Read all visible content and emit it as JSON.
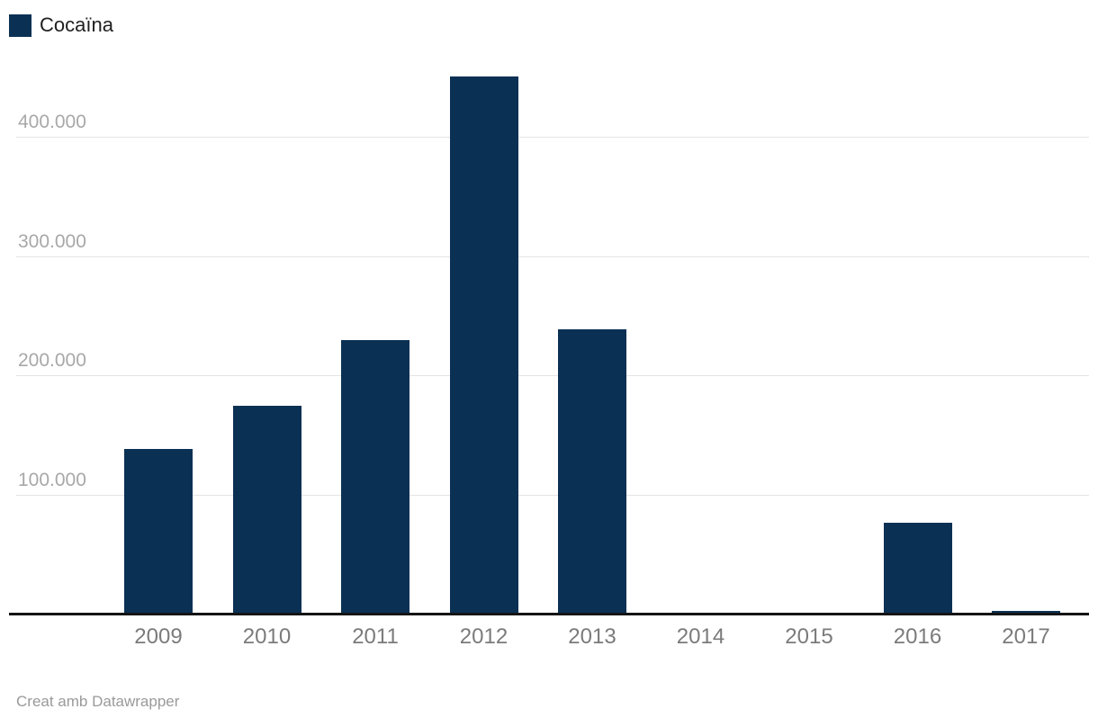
{
  "legend": {
    "items": [
      {
        "label": "Cocaïna",
        "color": "#0a3054"
      }
    ]
  },
  "footer": {
    "attribution": "Creat amb Datawrapper"
  },
  "chart_data": {
    "type": "bar",
    "title": "",
    "xlabel": "",
    "ylabel": "",
    "legend_position": "top-left",
    "grid": true,
    "bar_color": "#0a3054",
    "categories": [
      "2009",
      "2010",
      "2011",
      "2012",
      "2013",
      "2014",
      "2015",
      "2016",
      "2017"
    ],
    "series": [
      {
        "name": "Cocaïna",
        "color": "#0a3054",
        "values": [
          139000,
          175000,
          230000,
          451000,
          239000,
          0,
          0,
          77000,
          3000
        ]
      }
    ],
    "y_axis": {
      "min": 0,
      "max": 460000,
      "ticks": [
        {
          "value": 100000,
          "label": "100.000"
        },
        {
          "value": 200000,
          "label": "200.000"
        },
        {
          "value": 300000,
          "label": "300.000"
        },
        {
          "value": 400000,
          "label": "400.000"
        }
      ],
      "tick_label_position": "above-gridline"
    }
  }
}
